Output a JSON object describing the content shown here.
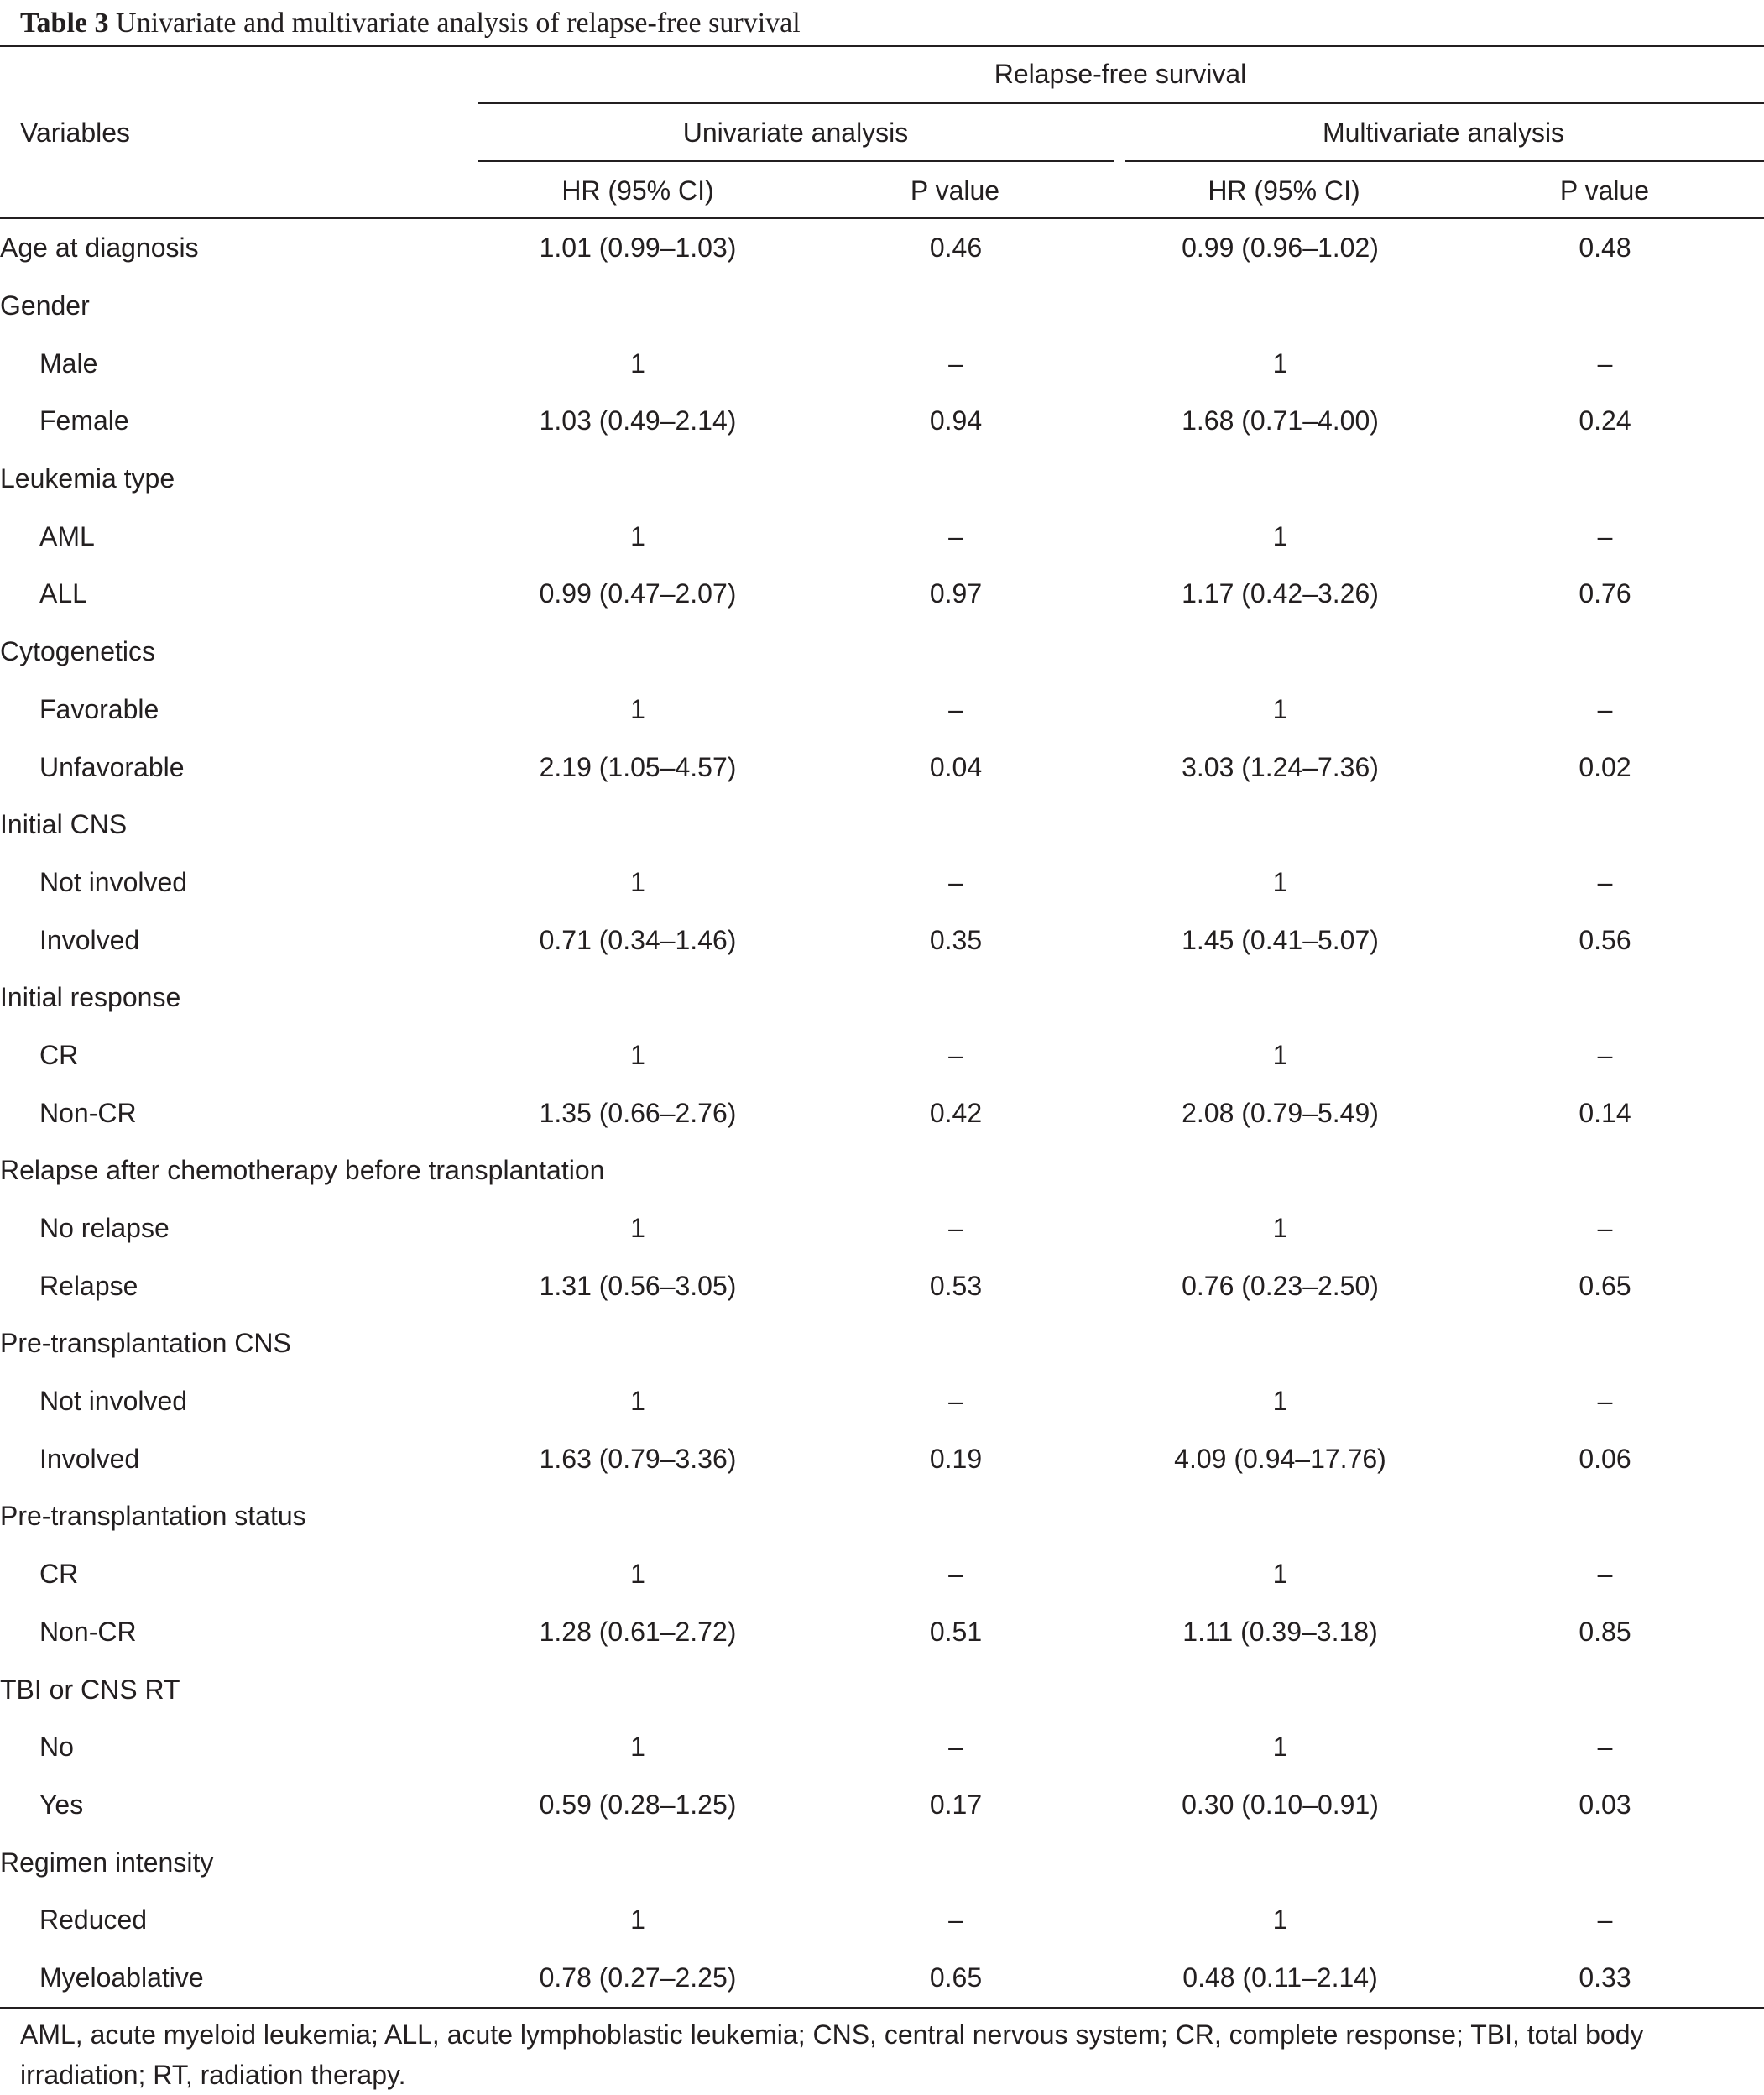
{
  "caption": {
    "label": "Table 3",
    "title": "Univariate and multivariate analysis of relapse-free survival"
  },
  "header": {
    "variables": "Variables",
    "group": "Relapse-free survival",
    "univariate": "Univariate analysis",
    "multivariate": "Multivariate analysis",
    "hr": "HR (95% CI)",
    "p": "P value"
  },
  "rows": [
    {
      "label": "Age at diagnosis",
      "sub": false,
      "uhr": "1.01 (0.99–1.03)",
      "up": "0.46",
      "mhr": "0.99 (0.96–1.02)",
      "mp": "0.48"
    },
    {
      "label": "Gender",
      "sub": false,
      "uhr": "",
      "up": "",
      "mhr": "",
      "mp": ""
    },
    {
      "label": "Male",
      "sub": true,
      "uhr": "1",
      "up": "–",
      "mhr": "1",
      "mp": "–"
    },
    {
      "label": "Female",
      "sub": true,
      "uhr": "1.03 (0.49–2.14)",
      "up": "0.94",
      "mhr": "1.68 (0.71–4.00)",
      "mp": "0.24"
    },
    {
      "label": "Leukemia type",
      "sub": false,
      "uhr": "",
      "up": "",
      "mhr": "",
      "mp": ""
    },
    {
      "label": "AML",
      "sub": true,
      "uhr": "1",
      "up": "–",
      "mhr": "1",
      "mp": "–"
    },
    {
      "label": "ALL",
      "sub": true,
      "uhr": "0.99 (0.47–2.07)",
      "up": "0.97",
      "mhr": "1.17 (0.42–3.26)",
      "mp": "0.76"
    },
    {
      "label": "Cytogenetics",
      "sub": false,
      "uhr": "",
      "up": "",
      "mhr": "",
      "mp": ""
    },
    {
      "label": "Favorable",
      "sub": true,
      "uhr": "1",
      "up": "–",
      "mhr": "1",
      "mp": "–"
    },
    {
      "label": "Unfavorable",
      "sub": true,
      "uhr": "2.19 (1.05–4.57)",
      "up": "0.04",
      "mhr": "3.03 (1.24–7.36)",
      "mp": "0.02"
    },
    {
      "label": "Initial CNS",
      "sub": false,
      "uhr": "",
      "up": "",
      "mhr": "",
      "mp": ""
    },
    {
      "label": "Not involved",
      "sub": true,
      "uhr": "1",
      "up": "–",
      "mhr": "1",
      "mp": "–"
    },
    {
      "label": "Involved",
      "sub": true,
      "uhr": "0.71 (0.34–1.46)",
      "up": "0.35",
      "mhr": "1.45 (0.41–5.07)",
      "mp": "0.56"
    },
    {
      "label": "Initial response",
      "sub": false,
      "uhr": "",
      "up": "",
      "mhr": "",
      "mp": ""
    },
    {
      "label": "CR",
      "sub": true,
      "uhr": "1",
      "up": "–",
      "mhr": "1",
      "mp": "–"
    },
    {
      "label": "Non-CR",
      "sub": true,
      "uhr": "1.35 (0.66–2.76)",
      "up": "0.42",
      "mhr": "2.08 (0.79–5.49)",
      "mp": "0.14"
    },
    {
      "label": "Relapse after chemotherapy before transplantation",
      "sub": false,
      "uhr": "",
      "up": "",
      "mhr": "",
      "mp": ""
    },
    {
      "label": "No relapse",
      "sub": true,
      "uhr": "1",
      "up": "–",
      "mhr": "1",
      "mp": "–"
    },
    {
      "label": "Relapse",
      "sub": true,
      "uhr": "1.31 (0.56–3.05)",
      "up": "0.53",
      "mhr": "0.76 (0.23–2.50)",
      "mp": "0.65"
    },
    {
      "label": "Pre-transplantation CNS",
      "sub": false,
      "uhr": "",
      "up": "",
      "mhr": "",
      "mp": ""
    },
    {
      "label": "Not involved",
      "sub": true,
      "uhr": "1",
      "up": "–",
      "mhr": "1",
      "mp": "–"
    },
    {
      "label": "Involved",
      "sub": true,
      "uhr": "1.63 (0.79–3.36)",
      "up": "0.19",
      "mhr": "4.09 (0.94–17.76)",
      "mp": "0.06"
    },
    {
      "label": "Pre-transplantation status",
      "sub": false,
      "uhr": "",
      "up": "",
      "mhr": "",
      "mp": ""
    },
    {
      "label": "CR",
      "sub": true,
      "uhr": "1",
      "up": "–",
      "mhr": "1",
      "mp": "–"
    },
    {
      "label": "Non-CR",
      "sub": true,
      "uhr": "1.28 (0.61–2.72)",
      "up": "0.51",
      "mhr": "1.11 (0.39–3.18)",
      "mp": "0.85"
    },
    {
      "label": "TBI or CNS RT",
      "sub": false,
      "uhr": "",
      "up": "",
      "mhr": "",
      "mp": ""
    },
    {
      "label": "No",
      "sub": true,
      "uhr": "1",
      "up": "–",
      "mhr": "1",
      "mp": "–"
    },
    {
      "label": "Yes",
      "sub": true,
      "uhr": "0.59 (0.28–1.25)",
      "up": "0.17",
      "mhr": "0.30 (0.10–0.91)",
      "mp": "0.03"
    },
    {
      "label": "Regimen intensity",
      "sub": false,
      "uhr": "",
      "up": "",
      "mhr": "",
      "mp": ""
    },
    {
      "label": "Reduced",
      "sub": true,
      "uhr": "1",
      "up": "–",
      "mhr": "1",
      "mp": "–"
    },
    {
      "label": "Myeloablative",
      "sub": true,
      "uhr": "0.78 (0.27–2.25)",
      "up": "0.65",
      "mhr": "0.48 (0.11–2.14)",
      "mp": "0.33"
    }
  ],
  "footnote": "AML, acute myeloid leukemia; ALL, acute lymphoblastic leukemia; CNS, central nervous system; CR, complete response; TBI, total body irradiation; RT, radiation therapy."
}
